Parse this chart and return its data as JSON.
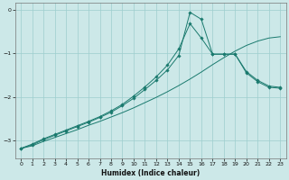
{
  "xlabel": "Humidex (Indice chaleur)",
  "xlim": [
    -0.5,
    23.5
  ],
  "ylim": [
    -3.4,
    0.15
  ],
  "yticks": [
    0,
    -1,
    -2,
    -3
  ],
  "xticks": [
    0,
    1,
    2,
    3,
    4,
    5,
    6,
    7,
    8,
    9,
    10,
    11,
    12,
    13,
    14,
    15,
    16,
    17,
    18,
    19,
    20,
    21,
    22,
    23
  ],
  "background_color": "#cce8e8",
  "grid_color": "#9ecece",
  "line_color": "#1a7a6e",
  "line1_x": [
    0,
    1,
    2,
    3,
    4,
    5,
    6,
    7,
    8,
    9,
    10,
    11,
    12,
    13,
    14,
    15,
    16,
    17,
    18,
    19,
    20,
    21,
    22,
    23
  ],
  "line1_y": [
    -3.18,
    -3.12,
    -3.02,
    -2.93,
    -2.84,
    -2.75,
    -2.65,
    -2.56,
    -2.46,
    -2.36,
    -2.25,
    -2.13,
    -2.01,
    -1.88,
    -1.74,
    -1.59,
    -1.43,
    -1.26,
    -1.1,
    -0.95,
    -0.82,
    -0.72,
    -0.65,
    -0.62
  ],
  "line2_x": [
    0,
    1,
    2,
    3,
    4,
    5,
    6,
    7,
    8,
    9,
    10,
    11,
    12,
    13,
    14,
    15,
    16,
    17,
    18,
    19,
    20,
    21,
    22,
    23
  ],
  "line2_y": [
    -3.18,
    -3.1,
    -2.98,
    -2.88,
    -2.78,
    -2.68,
    -2.58,
    -2.47,
    -2.35,
    -2.2,
    -2.03,
    -1.83,
    -1.62,
    -1.38,
    -1.05,
    -0.06,
    -0.22,
    -1.02,
    -1.02,
    -1.02,
    -1.45,
    -1.65,
    -1.78,
    -1.8
  ],
  "line3_x": [
    0,
    1,
    2,
    3,
    4,
    5,
    6,
    7,
    8,
    9,
    10,
    11,
    12,
    13,
    14,
    15,
    16,
    17,
    18,
    19,
    20,
    21,
    22,
    23
  ],
  "line3_y": [
    -3.18,
    -3.08,
    -2.96,
    -2.86,
    -2.76,
    -2.66,
    -2.56,
    -2.45,
    -2.32,
    -2.17,
    -1.98,
    -1.77,
    -1.54,
    -1.27,
    -0.9,
    -0.32,
    -0.65,
    -1.02,
    -1.02,
    -1.02,
    -1.42,
    -1.62,
    -1.75,
    -1.78
  ],
  "figsize": [
    3.2,
    2.0
  ],
  "dpi": 100
}
